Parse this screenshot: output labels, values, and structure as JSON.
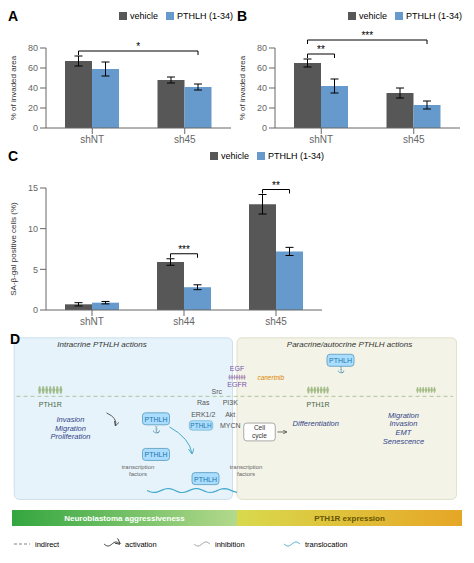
{
  "chart_data": [
    {
      "type": "bar",
      "title": "A",
      "categories": [
        "shNT",
        "sh45"
      ],
      "series": [
        {
          "name": "vehicle",
          "color": "#575757",
          "values": [
            67,
            48
          ],
          "errors": [
            5,
            3
          ]
        },
        {
          "name": "PTHLH (1-34)",
          "color": "#6699cc",
          "values": [
            59,
            41
          ],
          "errors": [
            7,
            3
          ]
        }
      ],
      "ylabel": "% of invaded area",
      "ylim": [
        0,
        80
      ],
      "yticks": [
        0,
        20,
        40,
        60,
        80
      ],
      "grid": false,
      "legend": "upper right",
      "annotations": [
        {
          "text": "*",
          "from": {
            "category": "shNT",
            "series": "vehicle"
          },
          "to": {
            "category": "sh45",
            "series": "PTHLH (1-34)"
          }
        }
      ]
    },
    {
      "type": "bar",
      "title": "B",
      "categories": [
        "shNT",
        "sh45"
      ],
      "series": [
        {
          "name": "vehicle",
          "color": "#575757",
          "values": [
            65,
            35
          ],
          "errors": [
            4,
            5
          ]
        },
        {
          "name": "PTHLH (1-34)",
          "color": "#6699cc",
          "values": [
            42,
            23
          ],
          "errors": [
            7,
            4
          ]
        }
      ],
      "ylabel": "% of invaded area",
      "ylim": [
        0,
        80
      ],
      "yticks": [
        0,
        20,
        40,
        60,
        80
      ],
      "grid": false,
      "legend": "upper right",
      "annotations": [
        {
          "text": "**",
          "from": {
            "category": "shNT",
            "series": "vehicle"
          },
          "to": {
            "category": "shNT",
            "series": "PTHLH (1-34)"
          }
        },
        {
          "text": "***",
          "from": {
            "category": "shNT",
            "series": "vehicle"
          },
          "to": {
            "category": "sh45",
            "series": "PTHLH (1-34)"
          }
        }
      ]
    },
    {
      "type": "bar",
      "title": "C",
      "categories": [
        "shNT",
        "sh44",
        "sh45"
      ],
      "series": [
        {
          "name": "vehicle",
          "color": "#575757",
          "values": [
            0.7,
            5.9,
            13.0
          ],
          "errors": [
            0.2,
            0.4,
            1.2
          ]
        },
        {
          "name": "PTHLH (1-34)",
          "color": "#6699cc",
          "values": [
            0.9,
            2.8,
            7.2
          ],
          "errors": [
            0.15,
            0.3,
            0.5
          ]
        }
      ],
      "ylabel": "SA-β-gal positive cells (%)",
      "ylim": [
        0,
        15
      ],
      "yticks": [
        0,
        5,
        10,
        15
      ],
      "grid": false,
      "legend": "upper right",
      "annotations": [
        {
          "text": "***",
          "from": {
            "category": "sh44",
            "series": "vehicle"
          },
          "to": {
            "category": "sh44",
            "series": "PTHLH (1-34)"
          }
        },
        {
          "text": "**",
          "from": {
            "category": "sh45",
            "series": "vehicle"
          },
          "to": {
            "category": "sh45",
            "series": "PTHLH (1-34)"
          }
        }
      ]
    },
    {
      "type": "diagram",
      "title": "D",
      "annotations": [
        "Intracrine PTHLH actions",
        "Paracrine/autocrine PTHLH actions",
        "PTH1R",
        "EGF",
        "EGFR",
        "canertnib",
        "PTH1R",
        "PTHLH",
        "PTHLH",
        "⚓",
        "PTHLH",
        "⚓",
        "PTHLH",
        "Src",
        "Ras",
        "PI3K",
        "ERK1/2",
        "Akt",
        "MYCN",
        "PTHLH",
        "Cell\ncycle",
        "Invasion\nMigration\nProliferation",
        "Migration\nInvasion\nEMT\nSenescence",
        "Differentiation",
        "transcription\nfactors",
        "transcription\nfactors",
        "Neuroblastoma aggressiveness",
        "PTH1R expression",
        "indirect",
        "activation",
        "inhibition",
        "translocation"
      ]
    }
  ]
}
